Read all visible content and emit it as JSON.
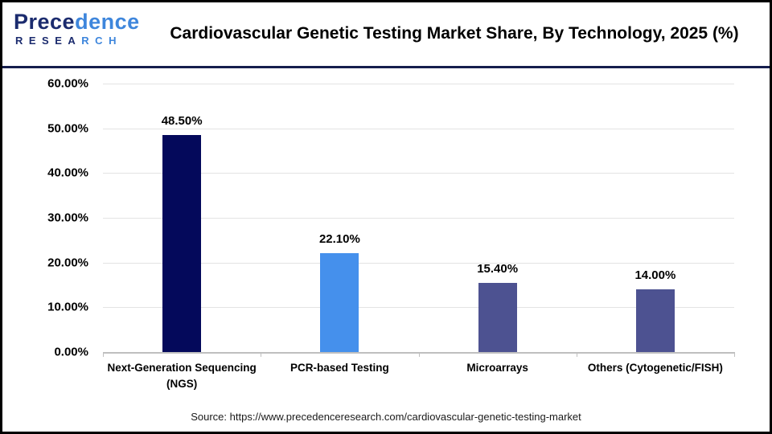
{
  "header": {
    "logo": {
      "brand_dark": "Prece",
      "brand_light": "dence",
      "sub_dark": "RESEA",
      "sub_light": "RCH"
    },
    "title": "Cardiovascular Genetic Testing Market Share, By Technology, 2025 (%)"
  },
  "chart_data": {
    "type": "bar",
    "title": "Cardiovascular Genetic Testing Market Share, By Technology, 2025 (%)",
    "categories": [
      "Next-Generation Sequencing (NGS)",
      "PCR-based Testing",
      "Microarrays",
      "Others (Cytogenetic/FISH)"
    ],
    "values": [
      48.5,
      22.1,
      15.4,
      14.0
    ],
    "value_labels": [
      "48.50%",
      "22.10%",
      "15.40%",
      "14.00%"
    ],
    "bar_colors": [
      "#04095B",
      "#4590EC",
      "#4D5291",
      "#4D5291"
    ],
    "xlabel": "",
    "ylabel": "",
    "ylim": [
      0,
      60
    ],
    "ytick_step": 10,
    "ytick_labels_top_to_bottom": [
      "60.00%",
      "50.00%",
      "40.00%",
      "30.00%",
      "20.00%",
      "10.00%",
      "0.00%"
    ],
    "grid": true,
    "legend_position": "none"
  },
  "footer": {
    "source_text": "Source: https://www.precedenceresearch.com/cardiovascular-genetic-testing-market"
  },
  "theme": {
    "header_rule": "#151E4D",
    "grid_color": "#E3E3E3",
    "axis_color": "#BFBFBF",
    "logo_dark": "#1B2B6E",
    "logo_light": "#3E86DC",
    "text_color": "#000000"
  }
}
